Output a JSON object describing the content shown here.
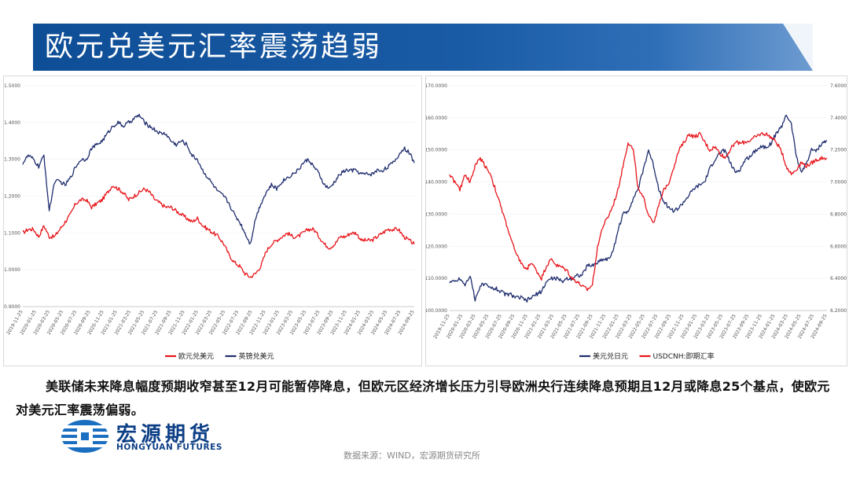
{
  "title": "欧元兑美元汇率震荡趋弱",
  "caption": "美联储未来降息幅度预期收窄甚至12月可能暂停降息，但欧元区经济增长压力引导欧洲央行连续降息预期且12月或降息25个基点，使欧元对美元汇率震荡偏弱。",
  "logo": {
    "cn": "宏源期货",
    "en": "HONGYUAN FUTURES"
  },
  "source": "数据来源：WIND，宏源期货研究所",
  "colors": {
    "navy": "#1f2d6e",
    "red": "#e8151b",
    "title_bg": "#1a5ba6"
  },
  "chart_data": [
    {
      "type": "line",
      "ylim": [
        0.9,
        1.5
      ],
      "y_ticks": [
        "1.5000",
        "1.4000",
        "1.3000",
        "1.2000",
        "1.1000",
        "1.0000",
        "0.9000"
      ],
      "x_ticks": [
        "2019-11-25",
        "2020-01-25",
        "2020-03-25",
        "2020-05-25",
        "2020-07-25",
        "2020-09-25",
        "2020-11-25",
        "2021-01-25",
        "2021-03-25",
        "2021-05-25",
        "2021-07-25",
        "2021-09-25",
        "2021-11-25",
        "2022-01-25",
        "2022-03-25",
        "2022-05-25",
        "2022-07-25",
        "2022-09-25",
        "2022-11-25",
        "2023-01-25",
        "2023-03-25",
        "2023-05-25",
        "2023-07-25",
        "2023-09-25",
        "2023-11-25",
        "2024-01-25",
        "2024-03-25",
        "2024-05-25",
        "2024-07-25",
        "2024-09-25"
      ],
      "legend": [
        "欧元兑美元",
        "英镑兑美元"
      ],
      "series": [
        {
          "name": "欧元兑美元",
          "color": "#e8151b",
          "values": [
            1.1,
            1.11,
            1.11,
            1.09,
            1.12,
            1.09,
            1.09,
            1.11,
            1.13,
            1.15,
            1.18,
            1.19,
            1.19,
            1.17,
            1.18,
            1.19,
            1.21,
            1.23,
            1.22,
            1.21,
            1.19,
            1.2,
            1.21,
            1.22,
            1.21,
            1.19,
            1.18,
            1.17,
            1.17,
            1.16,
            1.15,
            1.14,
            1.13,
            1.14,
            1.12,
            1.11,
            1.1,
            1.09,
            1.07,
            1.04,
            1.02,
            1.01,
            0.99,
            0.98,
            0.99,
            1.01,
            1.05,
            1.07,
            1.08,
            1.09,
            1.1,
            1.09,
            1.09,
            1.1,
            1.11,
            1.11,
            1.09,
            1.07,
            1.06,
            1.07,
            1.09,
            1.09,
            1.1,
            1.1,
            1.08,
            1.08,
            1.08,
            1.09,
            1.1,
            1.11,
            1.11,
            1.11,
            1.09,
            1.08,
            1.07
          ]
        },
        {
          "name": "英镑兑美元",
          "color": "#1f2d6e",
          "values": [
            1.29,
            1.31,
            1.3,
            1.28,
            1.31,
            1.16,
            1.24,
            1.24,
            1.23,
            1.25,
            1.28,
            1.3,
            1.3,
            1.33,
            1.34,
            1.35,
            1.37,
            1.39,
            1.4,
            1.39,
            1.4,
            1.41,
            1.42,
            1.4,
            1.39,
            1.38,
            1.37,
            1.37,
            1.35,
            1.34,
            1.35,
            1.34,
            1.31,
            1.3,
            1.27,
            1.25,
            1.23,
            1.21,
            1.2,
            1.18,
            1.15,
            1.13,
            1.1,
            1.07,
            1.14,
            1.18,
            1.21,
            1.23,
            1.22,
            1.24,
            1.25,
            1.26,
            1.27,
            1.29,
            1.3,
            1.28,
            1.26,
            1.23,
            1.22,
            1.24,
            1.26,
            1.27,
            1.27,
            1.27,
            1.26,
            1.26,
            1.26,
            1.27,
            1.27,
            1.28,
            1.29,
            1.31,
            1.33,
            1.32,
            1.29
          ]
        }
      ]
    },
    {
      "type": "line",
      "ylim": [
        100,
        170
      ],
      "y2lim": [
        6.2,
        7.6
      ],
      "y_ticks": [
        "170.0000",
        "160.0000",
        "150.0000",
        "140.0000",
        "130.0000",
        "120.0000",
        "110.0000",
        "100.0000"
      ],
      "y2_ticks": [
        "7.6000",
        "7.4000",
        "7.2000",
        "7.0000",
        "6.8000",
        "6.6000",
        "6.4000",
        "6.2000"
      ],
      "x_ticks": [
        "2019-11-25",
        "2020-01-25",
        "2020-03-25",
        "2020-05-25",
        "2020-07-25",
        "2020-09-25",
        "2020-11-25",
        "2021-01-25",
        "2021-03-25",
        "2021-05-25",
        "2021-07-25",
        "2021-09-25",
        "2021-11-25",
        "2022-01-25",
        "2022-03-25",
        "2022-05-25",
        "2022-07-25",
        "2022-09-25",
        "2022-11-25",
        "2023-01-25",
        "2023-03-25",
        "2023-05-25",
        "2023-07-25",
        "2023-09-25",
        "2023-11-25",
        "2024-01-25",
        "2024-03-25",
        "2024-05-25",
        "2024-07-25",
        "2024-09-25"
      ],
      "legend": [
        "美元兑日元",
        "USDCNH:即期汇率"
      ],
      "series": [
        {
          "name": "美元兑日元",
          "axis": "left",
          "color": "#1f2d6e",
          "values": [
            109,
            109,
            110,
            108,
            111,
            103,
            108,
            108,
            107,
            107,
            106,
            105,
            105,
            104,
            104,
            103,
            104,
            105,
            106,
            109,
            110,
            110,
            109,
            110,
            110,
            111,
            111,
            114,
            114,
            115,
            116,
            116,
            118,
            125,
            130,
            131,
            135,
            138,
            144,
            150,
            145,
            138,
            134,
            132,
            131,
            132,
            134,
            136,
            138,
            139,
            140,
            144,
            147,
            149,
            150,
            146,
            143,
            144,
            147,
            148,
            150,
            151,
            151,
            152,
            155,
            157,
            161,
            158,
            148,
            143,
            146,
            150,
            150,
            152,
            153
          ]
        },
        {
          "name": "USDCNH:即期汇率",
          "axis": "right",
          "color": "#e8151b",
          "values": [
            7.05,
            7.0,
            6.95,
            7.05,
            7.0,
            7.1,
            7.15,
            7.1,
            7.05,
            6.95,
            6.85,
            6.75,
            6.65,
            6.55,
            6.5,
            6.45,
            6.5,
            6.45,
            6.4,
            6.48,
            6.52,
            6.48,
            6.47,
            6.45,
            6.4,
            6.38,
            6.35,
            6.33,
            6.36,
            6.6,
            6.72,
            6.78,
            6.85,
            6.95,
            7.1,
            7.25,
            7.2,
            6.95,
            6.9,
            6.8,
            6.75,
            6.85,
            6.95,
            7.0,
            7.1,
            7.2,
            7.25,
            7.3,
            7.28,
            7.3,
            7.25,
            7.2,
            7.22,
            7.18,
            7.15,
            7.2,
            7.25,
            7.24,
            7.25,
            7.26,
            7.28,
            7.3,
            7.3,
            7.28,
            7.25,
            7.2,
            7.1,
            7.05,
            7.08,
            7.12,
            7.1,
            7.12,
            7.14,
            7.15,
            7.15
          ]
        }
      ]
    }
  ]
}
